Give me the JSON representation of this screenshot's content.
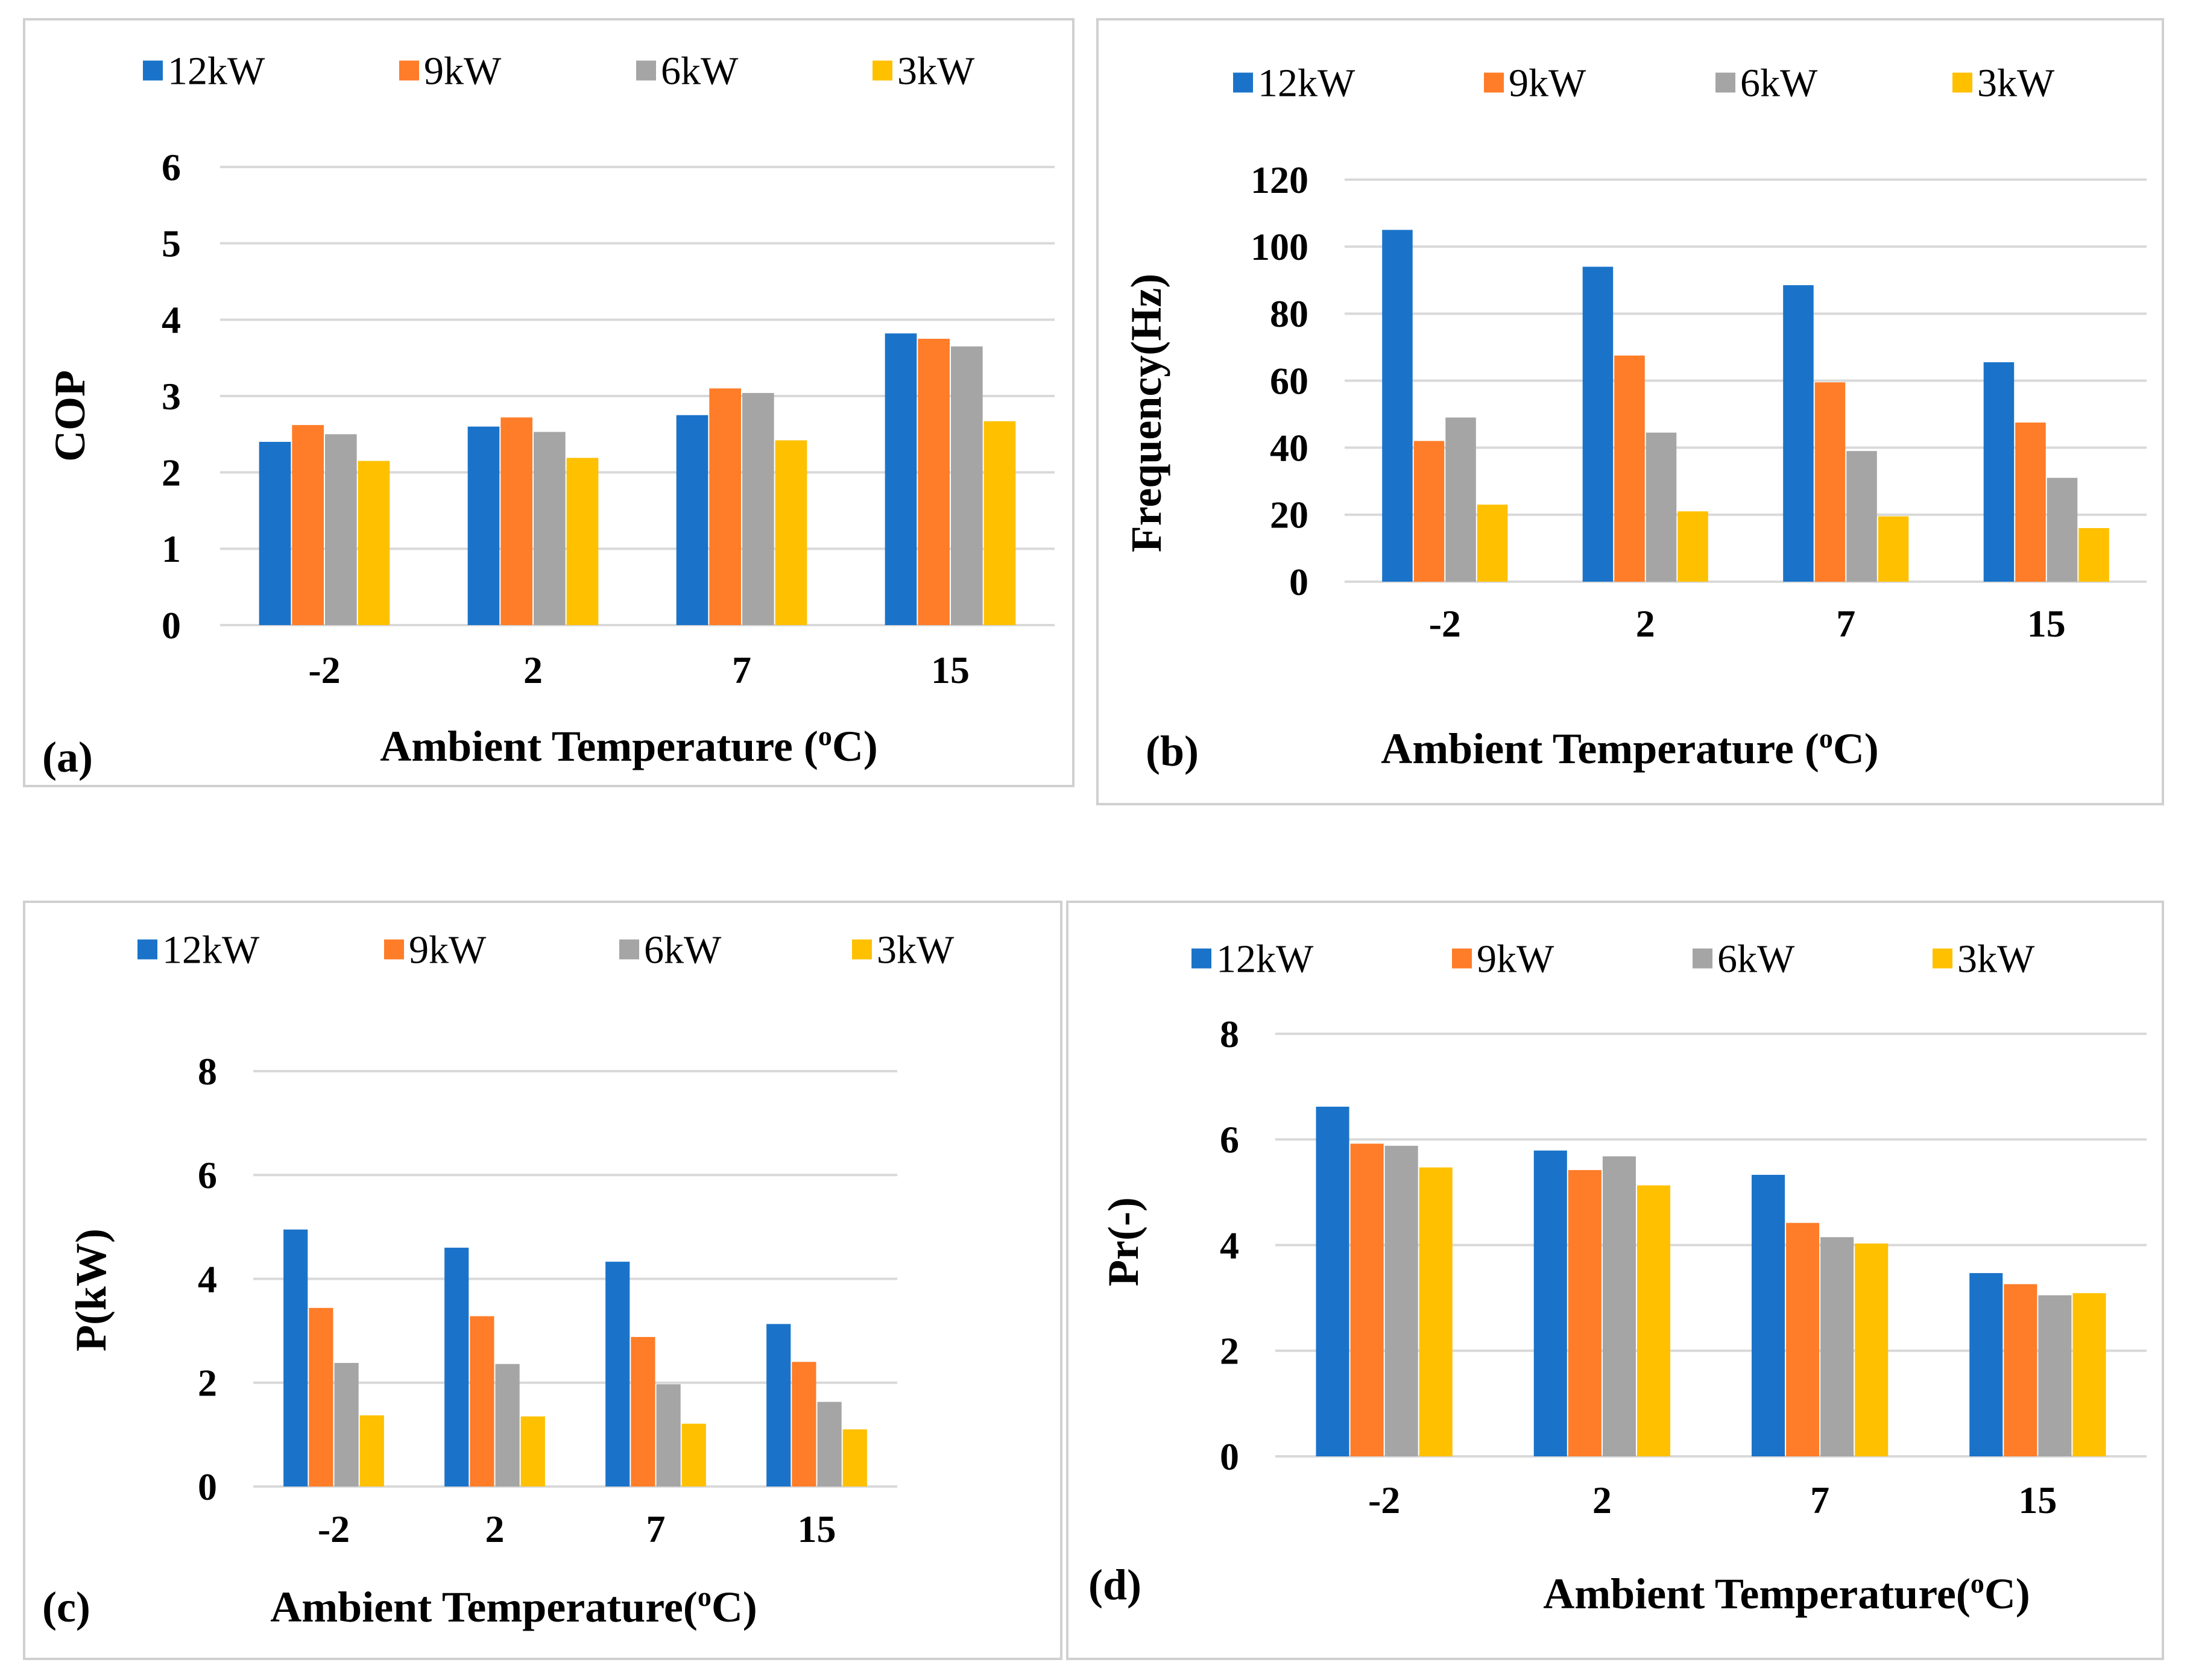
{
  "colors": {
    "series": [
      "#1a73c9",
      "#ff7c28",
      "#a5a5a5",
      "#ffc000"
    ],
    "grid": "#d9d9d9",
    "panel_border": "#d0d0d0"
  },
  "chart_data": [
    {
      "panel_label": "(a)",
      "type": "bar",
      "title": "",
      "xlabel": "Ambient Temperature (",
      "xlabel_sup": "o",
      "xlabel_tail": "C)",
      "ylabel": "COP",
      "ylim": [
        0,
        6
      ],
      "yticks": [
        0,
        1,
        2,
        3,
        4,
        5,
        6
      ],
      "grid": true,
      "legend": "top",
      "categories": [
        "-2",
        "2",
        "7",
        "15"
      ],
      "series": [
        {
          "name": "12kW",
          "values": [
            2.4,
            2.6,
            2.75,
            3.82
          ]
        },
        {
          "name": "9kW",
          "values": [
            2.62,
            2.72,
            3.1,
            3.75
          ]
        },
        {
          "name": "6kW",
          "values": [
            2.5,
            2.53,
            3.04,
            3.65
          ]
        },
        {
          "name": "3kW",
          "values": [
            2.15,
            2.19,
            2.42,
            2.67
          ]
        }
      ]
    },
    {
      "panel_label": "(b)",
      "type": "bar",
      "title": "",
      "xlabel": "Ambient Temperature (",
      "xlabel_sup": "o",
      "xlabel_tail": "C)",
      "ylabel": "Frequency(Hz)",
      "ylim": [
        0,
        120
      ],
      "yticks": [
        0,
        20,
        40,
        60,
        80,
        100,
        120
      ],
      "grid": true,
      "legend": "top",
      "categories": [
        "-2",
        "2",
        "7",
        "15"
      ],
      "series": [
        {
          "name": "12kW",
          "values": [
            105,
            94,
            88.5,
            65.5
          ]
        },
        {
          "name": "9kW",
          "values": [
            42,
            67.5,
            59.5,
            47.5
          ]
        },
        {
          "name": "6kW",
          "values": [
            49,
            44.5,
            39,
            31
          ]
        },
        {
          "name": "3kW",
          "values": [
            23,
            21,
            19.5,
            16
          ]
        }
      ]
    },
    {
      "panel_label": "(c)",
      "type": "bar",
      "title": "",
      "xlabel": "Ambient Temperature(",
      "xlabel_sup": "o",
      "xlabel_tail": "C)",
      "ylabel": "P(kW)",
      "ylim": [
        0,
        8
      ],
      "yticks": [
        0,
        2,
        4,
        6,
        8
      ],
      "grid": true,
      "legend": "top",
      "categories": [
        "-2",
        "2",
        "7",
        "15"
      ],
      "series": [
        {
          "name": "12kW",
          "values": [
            4.95,
            4.6,
            4.33,
            3.13
          ]
        },
        {
          "name": "9kW",
          "values": [
            3.44,
            3.28,
            2.88,
            2.4
          ]
        },
        {
          "name": "6kW",
          "values": [
            2.38,
            2.36,
            1.97,
            1.63
          ]
        },
        {
          "name": "3kW",
          "values": [
            1.37,
            1.35,
            1.21,
            1.1
          ]
        }
      ]
    },
    {
      "panel_label": "(d)",
      "type": "bar",
      "title": "",
      "xlabel": "Ambient Temperature(",
      "xlabel_sup": "o",
      "xlabel_tail": "C)",
      "ylabel": "Pr(-)",
      "ylim": [
        0,
        8
      ],
      "yticks": [
        0,
        2,
        4,
        6,
        8
      ],
      "grid": true,
      "legend": "top",
      "categories": [
        "-2",
        "2",
        "7",
        "15"
      ],
      "series": [
        {
          "name": "12kW",
          "values": [
            6.62,
            5.79,
            5.33,
            3.47
          ]
        },
        {
          "name": "9kW",
          "values": [
            5.92,
            5.42,
            4.42,
            3.26
          ]
        },
        {
          "name": "6kW",
          "values": [
            5.88,
            5.68,
            4.15,
            3.05
          ]
        },
        {
          "name": "3kW",
          "values": [
            5.47,
            5.13,
            4.03,
            3.09
          ]
        }
      ]
    }
  ]
}
